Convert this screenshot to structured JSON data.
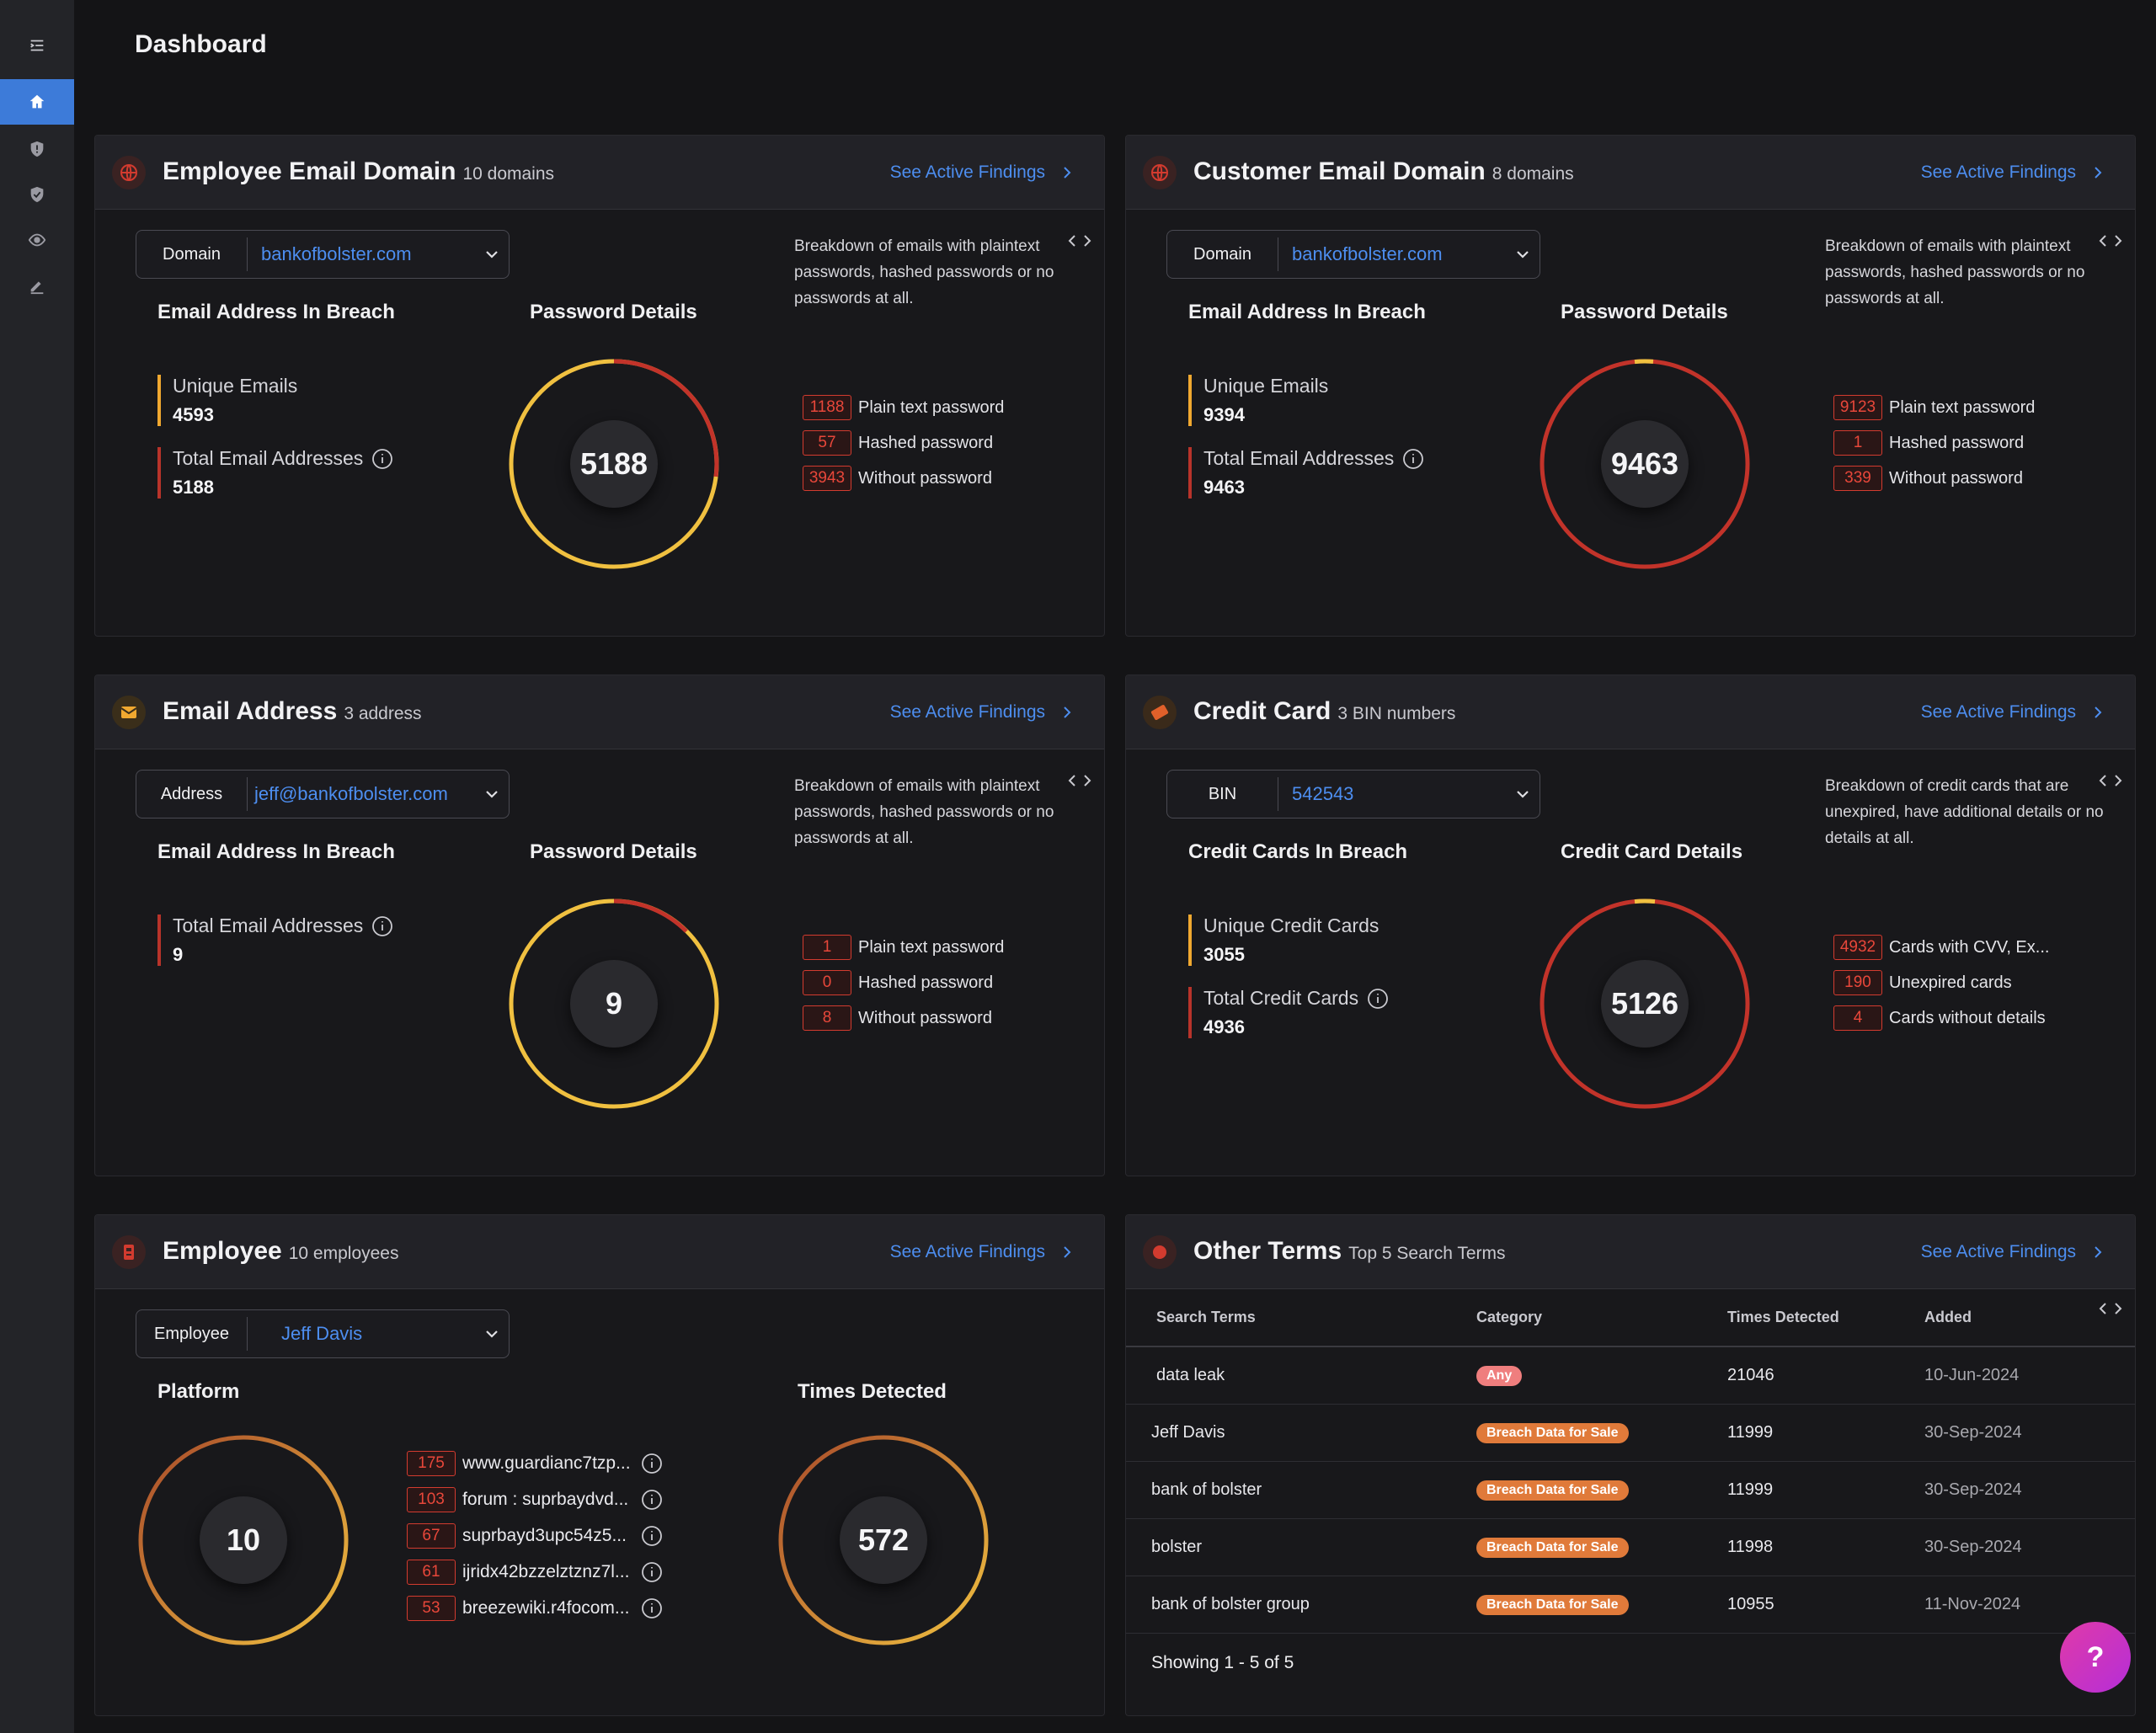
{
  "page_title": "Dashboard",
  "see_findings_label": "See Active Findings",
  "cards": {
    "employee_domain": {
      "title": "Employee Email Domain",
      "subtitle": "10 domains",
      "selector_label": "Domain",
      "selector_value": "bankofbolster.com",
      "breach_title": "Email Address In Breach",
      "stats": [
        {
          "label": "Unique Emails",
          "value": "4593"
        },
        {
          "label": "Total Email Addresses",
          "value": "5188"
        }
      ],
      "details_title": "Password Details",
      "donut_value": "5188",
      "breakdown_text": "Breakdown of emails with plaintext passwords, hashed passwords or no passwords at all.",
      "breakdown": [
        {
          "count": "1188",
          "label": "Plain text password"
        },
        {
          "count": "57",
          "label": "Hashed password"
        },
        {
          "count": "3943",
          "label": "Without password"
        }
      ]
    },
    "customer_domain": {
      "title": "Customer Email Domain",
      "subtitle": "8 domains",
      "selector_label": "Domain",
      "selector_value": "bankofbolster.com",
      "breach_title": "Email Address In Breach",
      "stats": [
        {
          "label": "Unique Emails",
          "value": "9394"
        },
        {
          "label": "Total Email Addresses",
          "value": "9463"
        }
      ],
      "details_title": "Password Details",
      "donut_value": "9463",
      "breakdown_text": "Breakdown of emails with plaintext passwords, hashed passwords or no passwords at all.",
      "breakdown": [
        {
          "count": "9123",
          "label": "Plain text password"
        },
        {
          "count": "1",
          "label": "Hashed password"
        },
        {
          "count": "339",
          "label": "Without password"
        }
      ]
    },
    "email_address": {
      "title": "Email Address",
      "subtitle": "3 address",
      "selector_label": "Address",
      "selector_value": "jeff@bankofbolster.com",
      "breach_title": "Email Address In Breach",
      "stats": [
        {
          "label": "Total Email Addresses",
          "value": "9"
        }
      ],
      "details_title": "Password Details",
      "donut_value": "9",
      "breakdown_text": "Breakdown of emails with plaintext passwords, hashed passwords or no passwords at all.",
      "breakdown": [
        {
          "count": "1",
          "label": "Plain text password"
        },
        {
          "count": "0",
          "label": "Hashed password"
        },
        {
          "count": "8",
          "label": "Without password"
        }
      ]
    },
    "credit_card": {
      "title": "Credit Card",
      "subtitle": "3 BIN numbers",
      "selector_label": "BIN",
      "selector_value": "542543",
      "breach_title": "Credit Cards In Breach",
      "stats": [
        {
          "label": "Unique Credit Cards",
          "value": "3055"
        },
        {
          "label": "Total Credit Cards",
          "value": "4936"
        }
      ],
      "details_title": "Credit Card Details",
      "donut_value": "5126",
      "breakdown_text": "Breakdown of credit cards that are unexpired, have additional details or no details at all.",
      "breakdown": [
        {
          "count": "4932",
          "label": "Cards with CVV, Ex..."
        },
        {
          "count": "190",
          "label": "Unexpired cards"
        },
        {
          "count": "4",
          "label": "Cards without details"
        }
      ]
    },
    "employee": {
      "title": "Employee",
      "subtitle": "10 employees",
      "selector_label": "Employee",
      "selector_value": "Jeff Davis",
      "platform_title": "Platform",
      "platform_donut": "10",
      "times_title": "Times Detected",
      "times_donut": "572",
      "platforms": [
        {
          "count": "175",
          "label": "www.guardianc7tzp..."
        },
        {
          "count": "103",
          "label": "forum : suprbaydvd..."
        },
        {
          "count": "67",
          "label": "suprbayd3upc54z5..."
        },
        {
          "count": "61",
          "label": "ijridx42bzzelztznz7l..."
        },
        {
          "count": "53",
          "label": "breezewiki.r4focom..."
        }
      ]
    },
    "other_terms": {
      "title": "Other Terms",
      "subtitle": "Top 5 Search Terms",
      "columns": [
        "Search Terms",
        "Category",
        "Times Detected",
        "Added"
      ],
      "rows": [
        {
          "term": "data leak",
          "category": "Any",
          "times": "21046",
          "added": "10-Jun-2024"
        },
        {
          "term": "Jeff Davis",
          "category": "Breach Data for Sale",
          "times": "11999",
          "added": "30-Sep-2024"
        },
        {
          "term": "bank of bolster",
          "category": "Breach Data for Sale",
          "times": "11999",
          "added": "30-Sep-2024"
        },
        {
          "term": "bolster",
          "category": "Breach Data for Sale",
          "times": "11998",
          "added": "30-Sep-2024"
        },
        {
          "term": "bank of bolster group",
          "category": "Breach Data for Sale",
          "times": "10955",
          "added": "11-Nov-2024"
        }
      ],
      "showing": "Showing 1 - 5 of 5"
    }
  },
  "help_label": "?",
  "colors": {
    "accent": "#4d8ef0",
    "amber": "#f0c040",
    "red": "#b8332a",
    "badge_red": "#d33b2f",
    "orange": "#e07a3a"
  }
}
